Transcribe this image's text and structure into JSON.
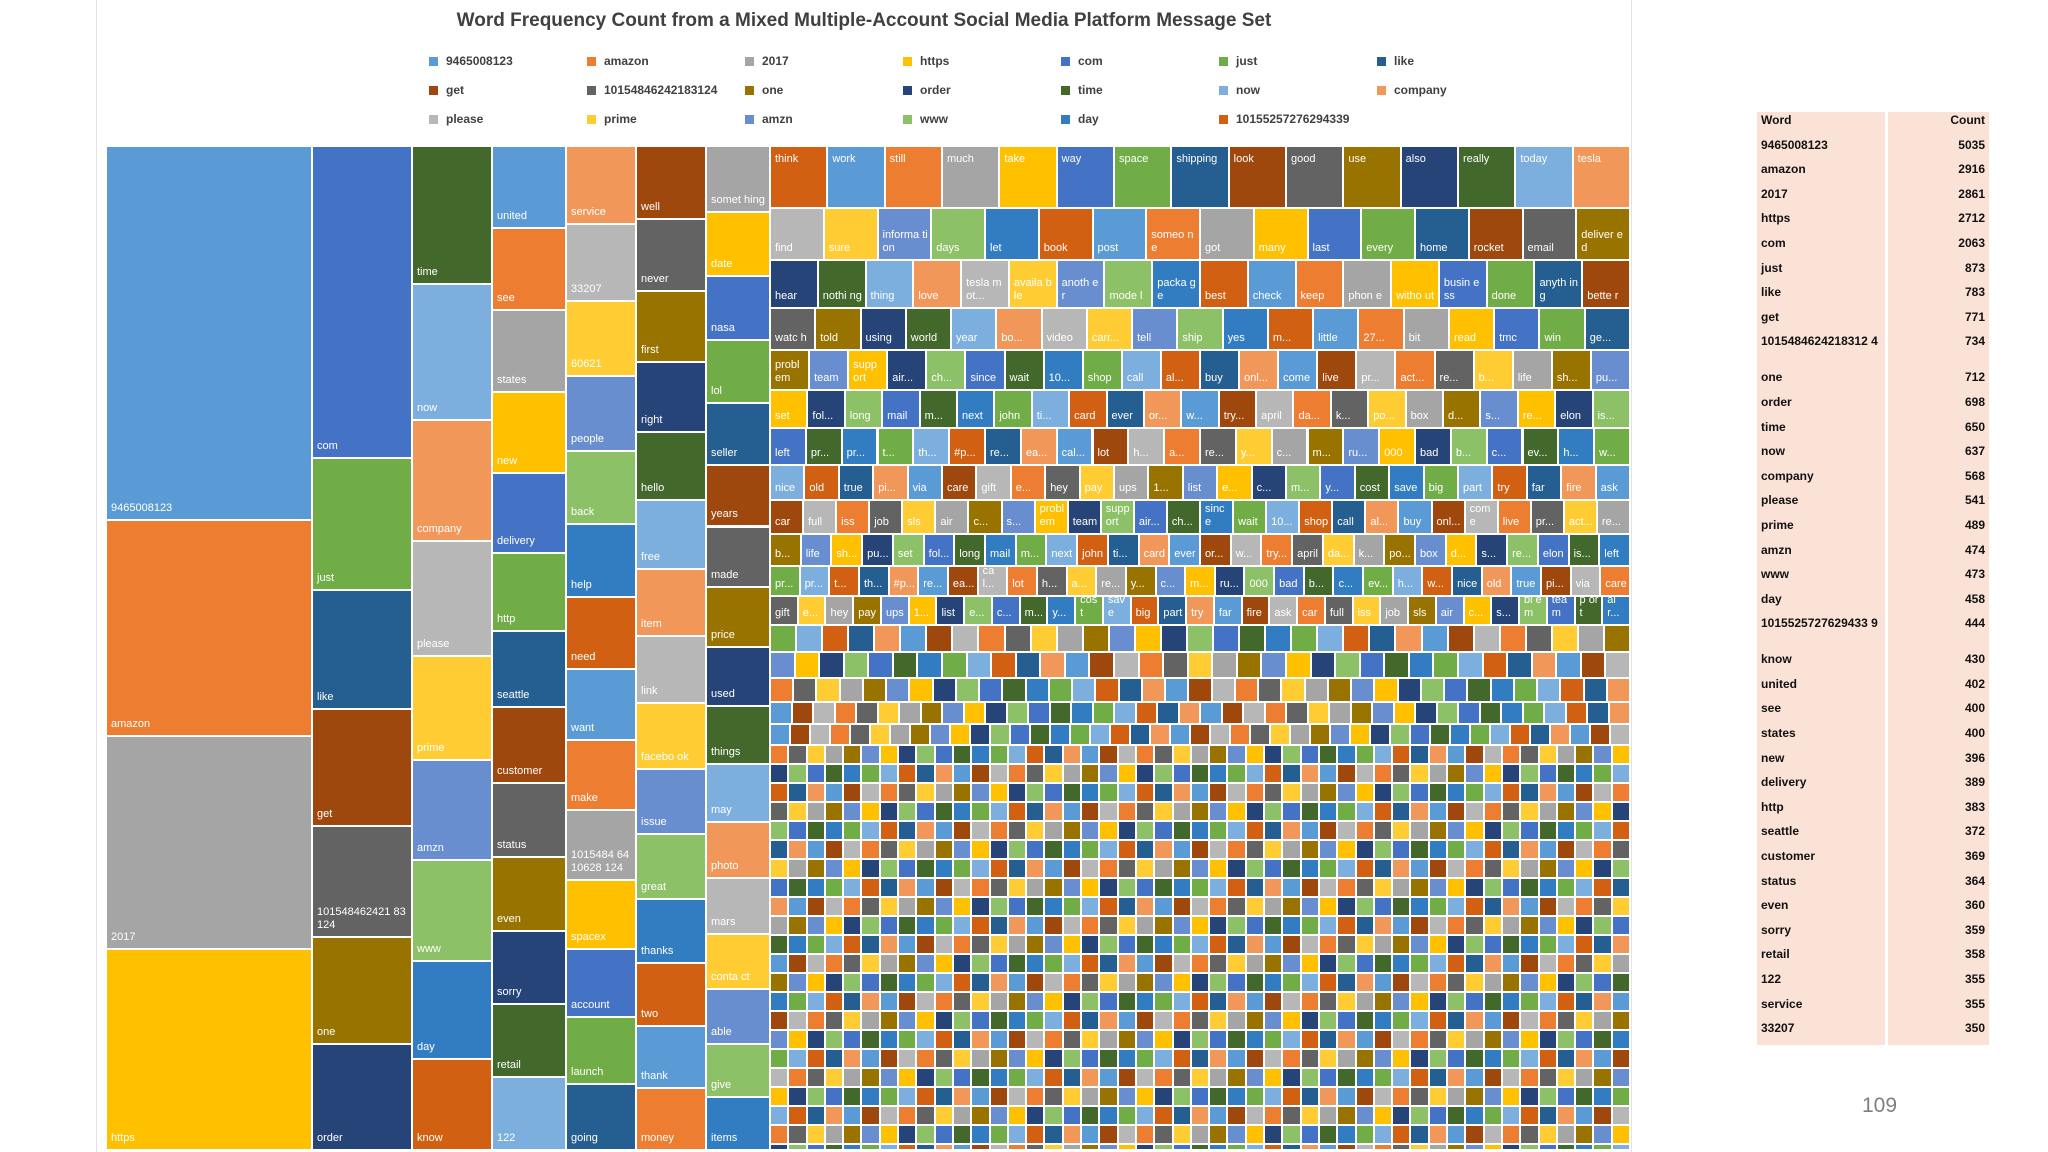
{
  "page_number": "109",
  "table": {
    "header": {
      "word": "Word",
      "count": "Count"
    },
    "rows": [
      {
        "word": "9465008123",
        "count": "5035"
      },
      {
        "word": "amazon",
        "count": "2916"
      },
      {
        "word": "2017",
        "count": "2861"
      },
      {
        "word": "https",
        "count": "2712"
      },
      {
        "word": "com",
        "count": "2063"
      },
      {
        "word": "just",
        "count": "873"
      },
      {
        "word": "like",
        "count": "783"
      },
      {
        "word": "get",
        "count": "771"
      },
      {
        "word": "1015484624218312 4",
        "count": "734"
      },
      {
        "word": "one",
        "count": "712"
      },
      {
        "word": "order",
        "count": "698"
      },
      {
        "word": "time",
        "count": "650"
      },
      {
        "word": "now",
        "count": "637"
      },
      {
        "word": "company",
        "count": "568"
      },
      {
        "word": "please",
        "count": "541"
      },
      {
        "word": "prime",
        "count": "489"
      },
      {
        "word": "amzn",
        "count": "474"
      },
      {
        "word": "www",
        "count": "473"
      },
      {
        "word": "day",
        "count": "458"
      },
      {
        "word": "1015525727629433 9",
        "count": "444"
      },
      {
        "word": "know",
        "count": "430"
      },
      {
        "word": "united",
        "count": "402"
      },
      {
        "word": "see",
        "count": "400"
      },
      {
        "word": "states",
        "count": "400"
      },
      {
        "word": "new",
        "count": "396"
      },
      {
        "word": "delivery",
        "count": "389"
      },
      {
        "word": "http",
        "count": "383"
      },
      {
        "word": "seattle",
        "count": "372"
      },
      {
        "word": "customer",
        "count": "369"
      },
      {
        "word": "status",
        "count": "364"
      },
      {
        "word": "even",
        "count": "360"
      },
      {
        "word": "sorry",
        "count": "359"
      },
      {
        "word": "retail",
        "count": "358"
      },
      {
        "word": "122",
        "count": "355"
      },
      {
        "word": "service",
        "count": "355"
      },
      {
        "word": "33207",
        "count": "350"
      }
    ]
  },
  "chart_data": {
    "type": "treemap",
    "title": "Word Frequency Count from a Mixed Multiple-Account Social Media Platform Message Set",
    "legend": [
      "9465008123",
      "amazon",
      "2017",
      "https",
      "com",
      "just",
      "like",
      "get",
      "10154846242183124",
      "one",
      "order",
      "time",
      "now",
      "company",
      "please",
      "prime",
      "amzn",
      "www",
      "day",
      "10155257276294339"
    ],
    "palette": [
      "#5b9bd5",
      "#ed7d31",
      "#a5a5a5",
      "#ffc000",
      "#4472c4",
      "#70ad47",
      "#255e91",
      "#9e480e",
      "#636363",
      "#997300",
      "#264478",
      "#43682b",
      "#7cafdd",
      "#f1975a",
      "#b7b7b7",
      "#ffcd33",
      "#698ed0",
      "#8cc168",
      "#327dc2",
      "#d26012"
    ],
    "columns": [
      {
        "words": [
          {
            "w": "9465008123",
            "v": 5035
          },
          {
            "w": "amazon",
            "v": 2916
          },
          {
            "w": "2017",
            "v": 2861
          },
          {
            "w": "https",
            "v": 2712
          }
        ]
      },
      {
        "words": [
          {
            "w": "com",
            "v": 2063
          },
          {
            "w": "just",
            "v": 873
          },
          {
            "w": "like",
            "v": 783
          },
          {
            "w": "get",
            "v": 771
          },
          {
            "w": "101548462421 83124",
            "v": 734
          },
          {
            "w": "one",
            "v": 712
          },
          {
            "w": "order",
            "v": 698
          }
        ]
      },
      {
        "words": [
          {
            "w": "time",
            "v": 650
          },
          {
            "w": "now",
            "v": 637
          },
          {
            "w": "company",
            "v": 568
          },
          {
            "w": "please",
            "v": 541
          },
          {
            "w": "prime",
            "v": 489
          },
          {
            "w": "amzn",
            "v": 474
          },
          {
            "w": "www",
            "v": 473
          },
          {
            "w": "day",
            "v": 458
          },
          {
            "w": "know",
            "v": 430
          }
        ]
      },
      {
        "words": [
          {
            "w": "united",
            "v": 402
          },
          {
            "w": "see",
            "v": 400
          },
          {
            "w": "states",
            "v": 400
          },
          {
            "w": "new",
            "v": 396
          },
          {
            "w": "delivery",
            "v": 389
          },
          {
            "w": "http",
            "v": 383
          },
          {
            "w": "seattle",
            "v": 372
          },
          {
            "w": "customer",
            "v": 369
          },
          {
            "w": "status",
            "v": 364
          },
          {
            "w": "even",
            "v": 360
          },
          {
            "w": "sorry",
            "v": 359
          },
          {
            "w": "retail",
            "v": 358
          },
          {
            "w": "122",
            "v": 355
          }
        ]
      },
      {
        "words": [
          {
            "w": "service",
            "v": 355
          },
          {
            "w": "33207",
            "v": 350
          },
          {
            "w": "60621",
            "v": 345
          },
          {
            "w": "people",
            "v": 340
          },
          {
            "w": "back",
            "v": 336
          },
          {
            "w": "help",
            "v": 332
          },
          {
            "w": "need",
            "v": 328
          },
          {
            "w": "want",
            "v": 324
          },
          {
            "w": "make",
            "v": 320
          },
          {
            "w": "1015484 6410628 124",
            "v": 318
          },
          {
            "w": "spacex",
            "v": 314
          },
          {
            "w": "account",
            "v": 310
          },
          {
            "w": "launch",
            "v": 306
          },
          {
            "w": "going",
            "v": 302
          }
        ]
      },
      {
        "words": [
          {
            "w": "well",
            "v": 300
          },
          {
            "w": "never",
            "v": 296
          },
          {
            "w": "first",
            "v": 292
          },
          {
            "w": "right",
            "v": 288
          },
          {
            "w": "hello",
            "v": 284
          },
          {
            "w": "free",
            "v": 281
          },
          {
            "w": "item",
            "v": 278
          },
          {
            "w": "link",
            "v": 275
          },
          {
            "w": "facebo ok",
            "v": 272
          },
          {
            "w": "issue",
            "v": 269
          },
          {
            "w": "great",
            "v": 266
          },
          {
            "w": "thanks",
            "v": 263
          },
          {
            "w": "two",
            "v": 260
          },
          {
            "w": "thank",
            "v": 257
          },
          {
            "w": "money",
            "v": 254
          }
        ]
      },
      {
        "words": [
          {
            "w": "somet hing",
            "v": 250
          },
          {
            "w": "date",
            "v": 246
          },
          {
            "w": "nasa",
            "v": 243
          },
          {
            "w": "lol",
            "v": 240
          },
          {
            "w": "seller",
            "v": 237
          },
          {
            "w": "years",
            "v": 234
          },
          {
            "w": "made",
            "v": 231
          },
          {
            "w": "price",
            "v": 228
          },
          {
            "w": "used",
            "v": 225
          },
          {
            "w": "things",
            "v": 222
          },
          {
            "w": "may",
            "v": 219
          },
          {
            "w": "photo",
            "v": 216
          },
          {
            "w": "mars",
            "v": 213
          },
          {
            "w": "conta ct",
            "v": 210
          },
          {
            "w": "able",
            "v": 207
          },
          {
            "w": "give",
            "v": 204
          },
          {
            "w": "items",
            "v": 201
          }
        ]
      }
    ],
    "top_row": [
      "think",
      "work",
      "still",
      "much",
      "take",
      "way",
      "space",
      "shipping",
      "look",
      "good",
      "use",
      "also",
      "really",
      "today",
      "tesla"
    ],
    "second_row": [
      "find",
      "sure",
      "informa tion",
      "days",
      "let",
      "book",
      "post",
      "someo ne",
      "got",
      "many",
      "last",
      "every",
      "home",
      "rocket",
      "email",
      "deliver ed"
    ],
    "third_row": [
      "hear",
      "nothi ng",
      "thing",
      "love",
      "tesla mot...",
      "availa ble",
      "anoth er",
      "mode l",
      "packa ge",
      "best",
      "check",
      "keep",
      "phon e",
      "witho ut",
      "busin ess",
      "done",
      "anyth ing",
      "bette r"
    ],
    "fourth_row": [
      "watc h",
      "told",
      "using",
      "world",
      "year",
      "bo...",
      "video",
      "carr...",
      "tell",
      "ship",
      "yes",
      "m...",
      "little",
      "27...",
      "bit",
      "read",
      "tmc",
      "win",
      "ge..."
    ],
    "small_words": [
      "probl em",
      "team",
      "supp ort",
      "air...",
      "ch...",
      "since",
      "wait",
      "10...",
      "shop",
      "call",
      "al...",
      "buy",
      "onl...",
      "come",
      "live",
      "pr...",
      "act...",
      "re...",
      "b...",
      "life",
      "sh...",
      "pu...",
      "set",
      "fol...",
      "long",
      "mail",
      "m...",
      "next",
      "john",
      "ti...",
      "card",
      "ever",
      "or...",
      "w...",
      "try...",
      "april",
      "da...",
      "k...",
      "po...",
      "box",
      "d...",
      "s...",
      "re...",
      "elon",
      "is...",
      "left",
      "pr...",
      "pr...",
      "t...",
      "th...",
      "#p...",
      "re...",
      "ea...",
      "cal...",
      "lot",
      "h...",
      "a...",
      "re...",
      "y...",
      "c...",
      "m...",
      "ru...",
      "000",
      "bad",
      "b...",
      "c...",
      "ev...",
      "h...",
      "w...",
      "nice",
      "old",
      "true",
      "pi...",
      "via",
      "care",
      "gift",
      "e...",
      "hey",
      "pay",
      "ups",
      "1...",
      "list",
      "e...",
      "c...",
      "m...",
      "y...",
      "cost",
      "save",
      "big",
      "part",
      "try",
      "far",
      "fire",
      "ask",
      "car",
      "full",
      "iss",
      "job",
      "sls",
      "air",
      "c...",
      "s..."
    ]
  }
}
